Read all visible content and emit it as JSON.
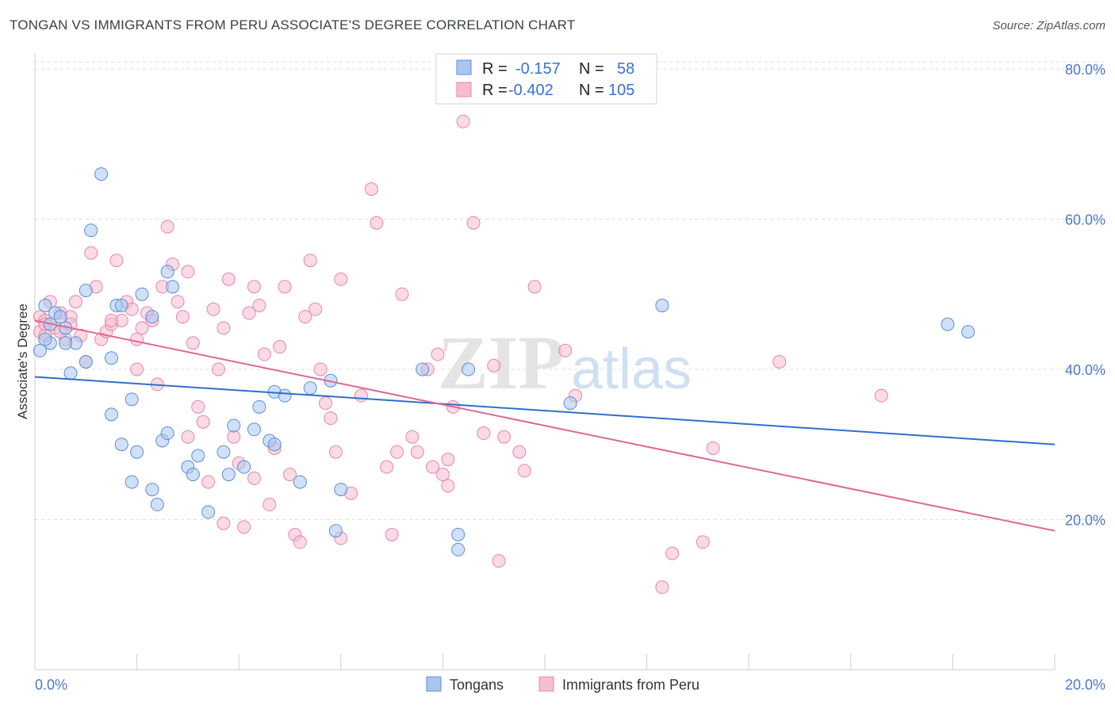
{
  "title": "TONGAN VS IMMIGRANTS FROM PERU ASSOCIATE'S DEGREE CORRELATION CHART",
  "source": "Source: ZipAtlas.com",
  "watermark": {
    "zip": "ZIP",
    "atlas": "atlas"
  },
  "colors": {
    "series1_fill": "#a9c6ef",
    "series1_stroke": "#5b8fd6",
    "series1_line": "#2f6fcb",
    "series2_fill": "#f6bcd0",
    "series2_stroke": "#e886a8",
    "series2_line": "#e06791",
    "tick": "#4a78c8",
    "grid": "#dedede"
  },
  "legend_top": {
    "rows": [
      {
        "r_label": "R =",
        "r_value": "-0.157",
        "n_label": "N =",
        "n_value": "58"
      },
      {
        "r_label": "R =",
        "r_value": "-0.402",
        "n_label": "N =",
        "n_value": "105"
      }
    ]
  },
  "chart_data": {
    "type": "scatter",
    "title": "TONGAN VS IMMIGRANTS FROM PERU ASSOCIATE'S DEGREE CORRELATION CHART",
    "xlabel": "",
    "ylabel": "Associate's Degree",
    "xlim": [
      0,
      20
    ],
    "ylim": [
      0,
      82
    ],
    "x_tick_labels": [
      "0.0%",
      "20.0%"
    ],
    "y_ticks": [
      20,
      40,
      60,
      80
    ],
    "y_tick_labels": [
      "20.0%",
      "40.0%",
      "60.0%",
      "80.0%"
    ],
    "grid": true,
    "legend_position": "bottom",
    "series": [
      {
        "name": "Tongans",
        "r": -0.157,
        "n": 58,
        "trend": {
          "x": [
            0,
            20
          ],
          "y": [
            39.0,
            30.0
          ]
        },
        "points": [
          [
            0.1,
            42.5
          ],
          [
            0.2,
            48.5
          ],
          [
            0.3,
            43.5
          ],
          [
            0.3,
            46
          ],
          [
            0.4,
            47.5
          ],
          [
            0.5,
            47
          ],
          [
            0.6,
            45.5
          ],
          [
            0.7,
            39.5
          ],
          [
            1.3,
            66
          ],
          [
            1.1,
            58.5
          ],
          [
            0.8,
            43.5
          ],
          [
            1.0,
            41
          ],
          [
            1.5,
            41.5
          ],
          [
            1.6,
            48.5
          ],
          [
            1.7,
            48.5
          ],
          [
            2.1,
            50
          ],
          [
            2.6,
            53
          ],
          [
            2.7,
            51
          ],
          [
            1.9,
            36
          ],
          [
            1.5,
            34
          ],
          [
            1.7,
            30
          ],
          [
            2.0,
            29
          ],
          [
            1.9,
            25
          ],
          [
            2.3,
            24
          ],
          [
            2.4,
            22
          ],
          [
            2.5,
            30.5
          ],
          [
            2.6,
            31.5
          ],
          [
            3.0,
            27
          ],
          [
            3.1,
            26
          ],
          [
            3.2,
            28.5
          ],
          [
            3.4,
            21
          ],
          [
            3.7,
            29
          ],
          [
            3.8,
            26
          ],
          [
            3.9,
            32.5
          ],
          [
            4.1,
            27
          ],
          [
            4.3,
            32
          ],
          [
            4.4,
            35
          ],
          [
            4.6,
            30.5
          ],
          [
            4.7,
            30
          ],
          [
            4.7,
            37
          ],
          [
            4.9,
            36.5
          ],
          [
            5.2,
            25
          ],
          [
            5.4,
            37.5
          ],
          [
            5.8,
            38.5
          ],
          [
            5.9,
            18.5
          ],
          [
            6.0,
            24
          ],
          [
            7.6,
            40
          ],
          [
            8.3,
            18
          ],
          [
            8.3,
            16
          ],
          [
            8.5,
            40
          ],
          [
            10.5,
            35.5
          ],
          [
            12.3,
            48.5
          ],
          [
            17.9,
            46
          ],
          [
            18.3,
            45
          ],
          [
            1.0,
            50.5
          ],
          [
            0.2,
            44
          ],
          [
            0.6,
            43.5
          ],
          [
            2.3,
            47
          ]
        ]
      },
      {
        "name": "Immigrants from Peru",
        "r": -0.402,
        "n": 105,
        "trend": {
          "x": [
            0,
            20
          ],
          "y": [
            46.5,
            18.5
          ]
        },
        "points": [
          [
            0.1,
            45
          ],
          [
            0.1,
            47
          ],
          [
            0.2,
            46.5
          ],
          [
            0.3,
            49
          ],
          [
            0.2,
            44.5
          ],
          [
            0.4,
            45.5
          ],
          [
            0.5,
            47.5
          ],
          [
            0.6,
            44
          ],
          [
            0.7,
            47
          ],
          [
            0.8,
            49
          ],
          [
            0.9,
            44.5
          ],
          [
            1.0,
            41
          ],
          [
            1.1,
            55.5
          ],
          [
            1.2,
            51
          ],
          [
            1.3,
            44
          ],
          [
            1.4,
            45
          ],
          [
            1.5,
            46
          ],
          [
            1.6,
            54.5
          ],
          [
            1.7,
            46.5
          ],
          [
            1.8,
            49
          ],
          [
            1.9,
            48
          ],
          [
            2.0,
            44
          ],
          [
            2.1,
            45.5
          ],
          [
            2.2,
            47.5
          ],
          [
            2.3,
            46.5
          ],
          [
            2.4,
            38
          ],
          [
            2.5,
            51
          ],
          [
            2.6,
            59
          ],
          [
            2.7,
            54
          ],
          [
            2.8,
            49
          ],
          [
            2.9,
            47
          ],
          [
            3.0,
            53
          ],
          [
            3.1,
            43.5
          ],
          [
            3.2,
            35
          ],
          [
            3.3,
            33
          ],
          [
            3.4,
            25
          ],
          [
            3.5,
            48
          ],
          [
            3.6,
            40
          ],
          [
            3.7,
            45.5
          ],
          [
            3.8,
            52
          ],
          [
            3.9,
            31
          ],
          [
            4.0,
            27.5
          ],
          [
            4.1,
            19
          ],
          [
            4.2,
            47.5
          ],
          [
            4.3,
            51
          ],
          [
            4.4,
            48.5
          ],
          [
            4.5,
            42
          ],
          [
            4.6,
            22
          ],
          [
            4.7,
            29.5
          ],
          [
            4.8,
            43
          ],
          [
            4.9,
            51
          ],
          [
            5.0,
            26
          ],
          [
            5.1,
            18
          ],
          [
            5.2,
            17
          ],
          [
            5.3,
            47
          ],
          [
            5.4,
            54.5
          ],
          [
            5.5,
            48
          ],
          [
            5.6,
            40
          ],
          [
            5.7,
            35.5
          ],
          [
            5.8,
            33.5
          ],
          [
            5.9,
            29
          ],
          [
            6.0,
            52
          ],
          [
            6.2,
            23.5
          ],
          [
            6.4,
            36.5
          ],
          [
            6.6,
            64
          ],
          [
            6.7,
            59.5
          ],
          [
            6.9,
            27
          ],
          [
            7.0,
            18
          ],
          [
            7.1,
            29
          ],
          [
            7.2,
            50
          ],
          [
            7.4,
            31
          ],
          [
            7.7,
            40
          ],
          [
            7.8,
            27
          ],
          [
            7.9,
            42
          ],
          [
            8.0,
            26
          ],
          [
            8.1,
            24.5
          ],
          [
            8.2,
            35
          ],
          [
            8.4,
            73
          ],
          [
            8.6,
            59.5
          ],
          [
            8.8,
            31.5
          ],
          [
            9.0,
            40.5
          ],
          [
            9.1,
            14.5
          ],
          [
            9.5,
            29
          ],
          [
            9.6,
            26.5
          ],
          [
            9.8,
            51
          ],
          [
            10.4,
            42.5
          ],
          [
            10.6,
            36.5
          ],
          [
            12.3,
            11
          ],
          [
            12.5,
            15.5
          ],
          [
            13.1,
            17
          ],
          [
            13.3,
            29.5
          ],
          [
            14.6,
            41
          ],
          [
            16.6,
            36.5
          ],
          [
            0.2,
            46
          ],
          [
            0.5,
            45
          ],
          [
            0.7,
            46
          ],
          [
            1.5,
            46.5
          ],
          [
            2.0,
            40
          ],
          [
            3.0,
            31
          ],
          [
            3.7,
            19.5
          ],
          [
            4.3,
            25.5
          ],
          [
            6.0,
            17.5
          ],
          [
            7.5,
            29
          ],
          [
            8.1,
            28
          ],
          [
            9.2,
            31
          ]
        ]
      }
    ]
  }
}
